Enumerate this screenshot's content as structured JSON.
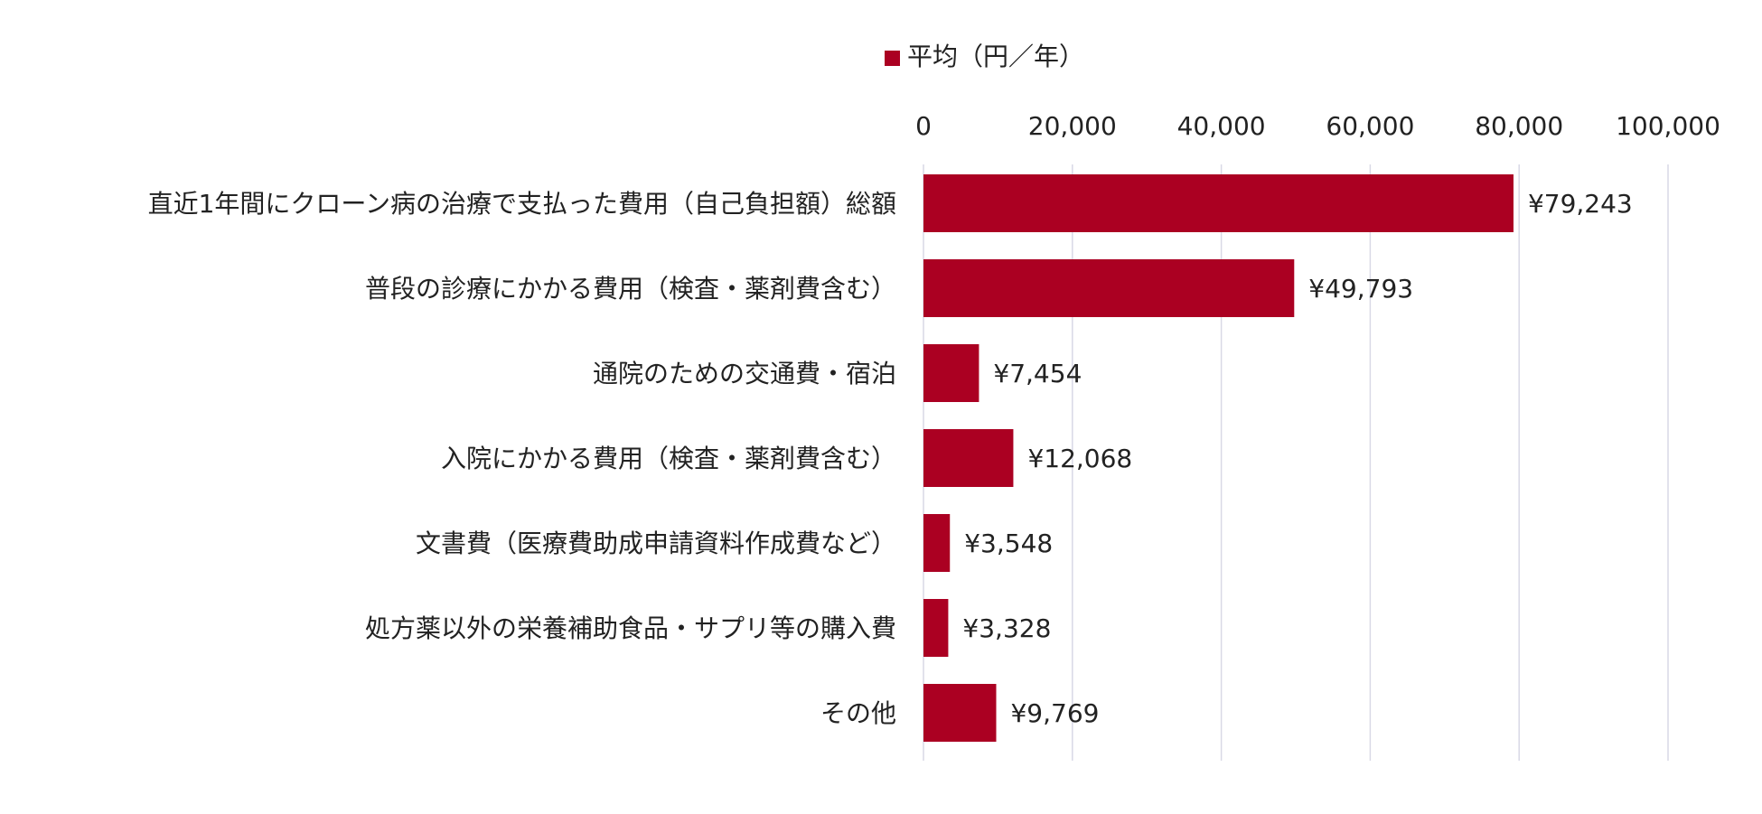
{
  "colors": {
    "bar": "#ab0022",
    "grid": "#d9d9e6",
    "text": "#222222",
    "background": "#ffffff"
  },
  "chart_data": {
    "type": "bar",
    "orientation": "horizontal",
    "legend": {
      "position": "top",
      "entries": [
        "平均（円／年）"
      ]
    },
    "x_axis": {
      "position": "top",
      "range": [
        0,
        100000
      ],
      "ticks": [
        0,
        20000,
        40000,
        60000,
        80000,
        100000
      ],
      "tick_labels": [
        "0",
        "20,000",
        "40,000",
        "60,000",
        "80,000",
        "100,000"
      ],
      "grid": true
    },
    "categories": [
      "直近1年間にクローン病の治療で支払った費用（自己負担額）総額",
      "普段の診療にかかる費用（検査・薬剤費含む）",
      "通院のための交通費・宿泊",
      "入院にかかる費用（検査・薬剤費含む）",
      "文書費（医療費助成申請資料作成費など）",
      "処方薬以外の栄養補助食品・サプリ等の購入費",
      "その他"
    ],
    "series": [
      {
        "name": "平均（円／年）",
        "values": [
          79243,
          49793,
          7454,
          12068,
          3548,
          3328,
          9769
        ],
        "data_labels": [
          "¥79,243",
          "¥49,793",
          "¥7,454",
          "¥12,068",
          "¥3,548",
          "¥3,328",
          "¥9,769"
        ]
      }
    ]
  }
}
